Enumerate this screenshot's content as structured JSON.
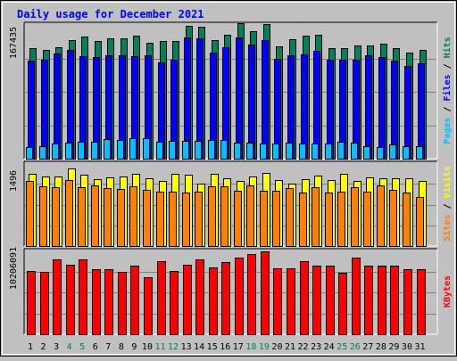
{
  "colors": {
    "background": "#c0c0c0",
    "panel": "#c0c0c0",
    "title": "#0000ff",
    "hits": "#00805c",
    "files": "#0000ff",
    "pages": "#00c0ff",
    "visits": "#ffff00",
    "sites": "#ff8000",
    "kbytes": "#ff0000",
    "weekend_label": "#00805c",
    "weekday_label": "#000000"
  },
  "chart_data": [
    {
      "type": "bar",
      "title": "Daily usage for December 2021",
      "ylabel_parts": [
        "Pages",
        "/",
        "Files",
        "/",
        "Hits"
      ],
      "ymax_label": "167435",
      "ylim": [
        0,
        167435
      ],
      "categories": [
        "1",
        "2",
        "3",
        "4",
        "5",
        "6",
        "7",
        "8",
        "9",
        "10",
        "11",
        "12",
        "13",
        "14",
        "15",
        "16",
        "17",
        "18",
        "19",
        "20",
        "21",
        "22",
        "23",
        "24",
        "25",
        "26",
        "27",
        "28",
        "29",
        "30",
        "31"
      ],
      "weekend_days": [
        "4",
        "5",
        "11",
        "12",
        "18",
        "19",
        "25",
        "26"
      ],
      "series": [
        {
          "name": "Hits",
          "values": [
            138000,
            136000,
            140000,
            149000,
            153000,
            147000,
            151000,
            151000,
            154000,
            145000,
            147000,
            147000,
            166000,
            165000,
            149000,
            155000,
            170000,
            160000,
            169000,
            141000,
            150000,
            154000,
            155000,
            138000,
            138000,
            142000,
            142000,
            144000,
            138000,
            133000,
            136000
          ]
        },
        {
          "name": "Files",
          "values": [
            123000,
            124000,
            132000,
            136000,
            128000,
            127000,
            129000,
            130000,
            128000,
            129000,
            121000,
            124000,
            152000,
            151000,
            133000,
            140000,
            152000,
            143000,
            149000,
            125000,
            130000,
            131000,
            135000,
            124000,
            124000,
            124000,
            130000,
            127000,
            123000,
            116000,
            119000
          ]
        },
        {
          "name": "Pages",
          "values": [
            14000,
            16000,
            19000,
            20000,
            21000,
            21000,
            25000,
            23000,
            26000,
            26000,
            21000,
            22000,
            22000,
            22000,
            23000,
            23000,
            20000,
            20000,
            19000,
            19000,
            20000,
            19000,
            19000,
            19000,
            21000,
            20000,
            16000,
            15000,
            18000,
            16000,
            16000
          ]
        }
      ]
    },
    {
      "type": "bar",
      "ylabel_parts": [
        "Sites",
        "/",
        "Visits"
      ],
      "ymax_label": "1496",
      "ylim": [
        0,
        1496
      ],
      "categories": [
        "1",
        "2",
        "3",
        "4",
        "5",
        "6",
        "7",
        "8",
        "9",
        "10",
        "11",
        "12",
        "13",
        "14",
        "15",
        "16",
        "17",
        "18",
        "19",
        "20",
        "21",
        "22",
        "23",
        "24",
        "25",
        "26",
        "27",
        "28",
        "29",
        "30",
        "31"
      ],
      "series": [
        {
          "name": "Visits",
          "values": [
            1300,
            1260,
            1260,
            1400,
            1280,
            1210,
            1240,
            1250,
            1310,
            1220,
            1170,
            1300,
            1290,
            1130,
            1310,
            1230,
            1180,
            1250,
            1320,
            1190,
            1120,
            1210,
            1270,
            1190,
            1310,
            1180,
            1240,
            1230,
            1220,
            1220,
            1180
          ]
        },
        {
          "name": "Sites",
          "values": [
            1180,
            1080,
            1060,
            1190,
            1060,
            1100,
            1040,
            1030,
            1070,
            1020,
            980,
            980,
            960,
            980,
            1080,
            1070,
            990,
            1100,
            990,
            1000,
            1050,
            970,
            1060,
            960,
            980,
            1060,
            980,
            1090,
            1020,
            970,
            890
          ]
        }
      ]
    },
    {
      "type": "bar",
      "ylabel_parts": [
        "KBytes"
      ],
      "ymax_label": "10206091",
      "ylim": [
        0,
        10206091
      ],
      "categories": [
        "1",
        "2",
        "3",
        "4",
        "5",
        "6",
        "7",
        "8",
        "9",
        "10",
        "11",
        "12",
        "13",
        "14",
        "15",
        "16",
        "17",
        "18",
        "19",
        "20",
        "21",
        "22",
        "23",
        "24",
        "25",
        "26",
        "27",
        "28",
        "29",
        "30",
        "31"
      ],
      "series": [
        {
          "name": "KBytes",
          "values": [
            7760000,
            7620000,
            9110000,
            8450000,
            9110000,
            7970000,
            7970000,
            7550000,
            8350000,
            6990000,
            8890000,
            7760000,
            8480000,
            9090000,
            8180000,
            8780000,
            9330000,
            9790000,
            10110000,
            8010000,
            8010000,
            8890000,
            8340000,
            8340000,
            7450000,
            9330000,
            8340000,
            8350000,
            8340000,
            7960000,
            7950000
          ]
        }
      ]
    }
  ]
}
